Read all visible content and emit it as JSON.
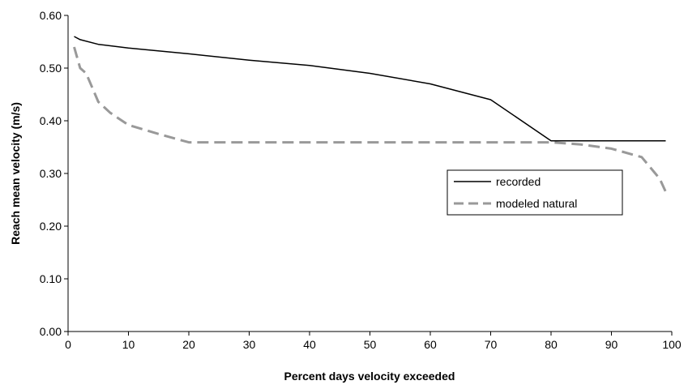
{
  "chart_data": {
    "type": "line",
    "title": "",
    "xlabel": "Percent days velocity exceeded",
    "ylabel": "Reach mean velocity (m/s)",
    "xlim": [
      0,
      100
    ],
    "ylim": [
      0,
      0.6
    ],
    "x_ticks": [
      0,
      10,
      20,
      30,
      40,
      50,
      60,
      70,
      80,
      90,
      100
    ],
    "x_tick_labels": [
      "0",
      "10",
      "20",
      "30",
      "40",
      "50",
      "60",
      "70",
      "80",
      "90",
      "100"
    ],
    "y_ticks": [
      0,
      0.1,
      0.2,
      0.3,
      0.4,
      0.5,
      0.6
    ],
    "y_tick_labels": [
      "0.00",
      "0.10",
      "0.20",
      "0.30",
      "0.40",
      "0.50",
      "0.60"
    ],
    "grid": false,
    "legend_position": "right",
    "series": [
      {
        "name": "recorded",
        "color": "#000000",
        "style": "solid",
        "points": [
          [
            1,
            0.56
          ],
          [
            2,
            0.554
          ],
          [
            5,
            0.545
          ],
          [
            10,
            0.538
          ],
          [
            20,
            0.527
          ],
          [
            30,
            0.515
          ],
          [
            40,
            0.505
          ],
          [
            50,
            0.49
          ],
          [
            60,
            0.47
          ],
          [
            70,
            0.44
          ],
          [
            80,
            0.362
          ],
          [
            90,
            0.362
          ],
          [
            95,
            0.362
          ],
          [
            99,
            0.362
          ]
        ]
      },
      {
        "name": "modeled natural",
        "color": "#999999",
        "style": "dashed",
        "points": [
          [
            1,
            0.54
          ],
          [
            2,
            0.5
          ],
          [
            3,
            0.49
          ],
          [
            5,
            0.436
          ],
          [
            7,
            0.415
          ],
          [
            10,
            0.392
          ],
          [
            15,
            0.375
          ],
          [
            20,
            0.359
          ],
          [
            30,
            0.359
          ],
          [
            40,
            0.359
          ],
          [
            50,
            0.359
          ],
          [
            60,
            0.359
          ],
          [
            70,
            0.359
          ],
          [
            80,
            0.359
          ],
          [
            85,
            0.355
          ],
          [
            90,
            0.347
          ],
          [
            95,
            0.331
          ],
          [
            98,
            0.29
          ],
          [
            99,
            0.265
          ]
        ]
      }
    ]
  }
}
